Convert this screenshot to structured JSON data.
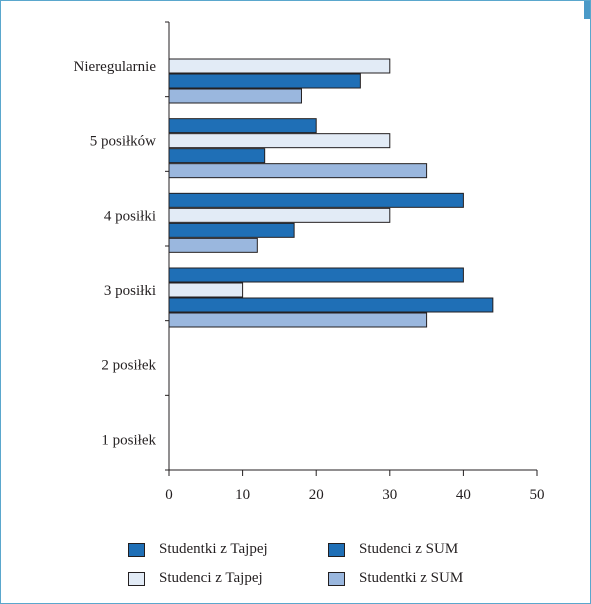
{
  "chart_data": {
    "type": "bar",
    "orientation": "horizontal",
    "title": "",
    "xlabel": "",
    "ylabel": "",
    "xlim": [
      0,
      50
    ],
    "x_ticks": [
      0,
      10,
      20,
      30,
      40,
      50
    ],
    "grid": false,
    "legend_position": "bottom",
    "categories": [
      "Nieregularnie",
      "5 posiłków",
      "4 posiłki",
      "3 posiłki",
      "2 posiłek",
      "1 posiłek"
    ],
    "series": [
      {
        "name": "Studentki z Tajpej",
        "color": "#1f6fb6",
        "values": [
          null,
          20,
          40,
          40,
          null,
          null
        ]
      },
      {
        "name": "Studenci z Tajpej",
        "color": "#e2ebf6",
        "values": [
          30,
          30,
          30,
          10,
          null,
          null
        ]
      },
      {
        "name": "Studenci z SUM",
        "color": "#1f6fb6",
        "values": [
          26,
          13,
          17,
          44,
          null,
          null
        ]
      },
      {
        "name": "Studentki z SUM",
        "color": "#9ab7de",
        "values": [
          18,
          35,
          12,
          35,
          null,
          null
        ]
      }
    ]
  },
  "legend": {
    "items": [
      {
        "label": "Studentki z Tajpej",
        "color": "#1f6fb6"
      },
      {
        "label": "Studenci z SUM",
        "color": "#1f6fb6"
      },
      {
        "label": "Studenci z Tajpej",
        "color": "#e2ebf6"
      },
      {
        "label": "Studentki z SUM",
        "color": "#9ab7de"
      }
    ]
  },
  "colors": {
    "frame_border": "#5aa7cd",
    "axis": "#231f20",
    "bar_outline": "#231f20"
  }
}
